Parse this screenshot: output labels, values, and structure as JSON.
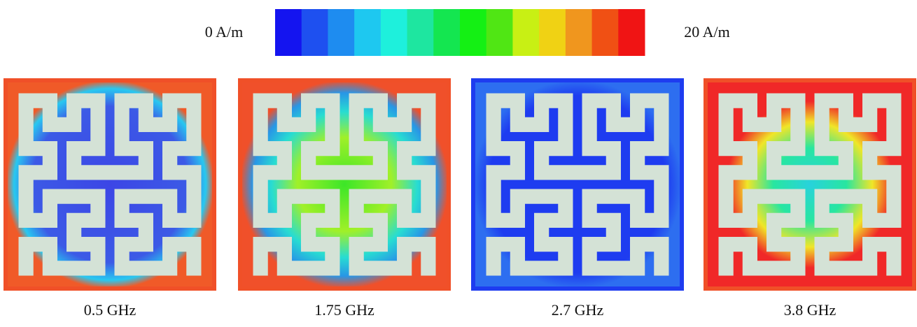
{
  "colorbar": {
    "min_label": "0 A/m",
    "max_label": "20 A/m",
    "colors": [
      "#1414f0",
      "#1e50f0",
      "#1e8cf0",
      "#1ec8f0",
      "#1ef0dc",
      "#1ee6a0",
      "#14e650",
      "#14f014",
      "#50e614",
      "#c8f014",
      "#f0d214",
      "#f0961e",
      "#f05014",
      "#f01414"
    ]
  },
  "panels": [
    {
      "label": "0.5 GHz"
    },
    {
      "label": "1.75 GHz"
    },
    {
      "label": "2.7 GHz"
    },
    {
      "label": "3.8 GHz"
    }
  ]
}
